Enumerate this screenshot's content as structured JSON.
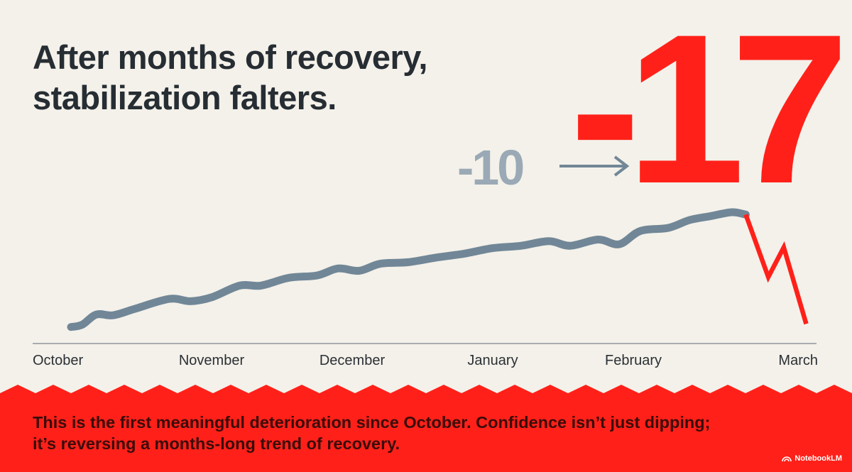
{
  "slide": {
    "headline": {
      "line1": "After months of recovery,",
      "line2": "stabilization falters."
    },
    "from_value": "-10",
    "to_value": "-17",
    "footer": {
      "line1": "This is the first meaningful deterioration since October. Confidence isn’t just dipping;",
      "line2": "it’s reversing a months-long trend of recovery."
    },
    "brand": "NotebookLM",
    "brand_icon": "notebooklm-logo-icon"
  },
  "colors": {
    "background": "#f4f1ea",
    "trend_line": "#718797",
    "drop_line": "#ff2119",
    "accent_red": "#ff2119",
    "muted_value": "#9aa9b5",
    "headline": "#262d33"
  },
  "chart_data": {
    "type": "line",
    "x_axis_labels": [
      "October",
      "November",
      "December",
      "January",
      "February",
      "March"
    ],
    "y_axis": "none",
    "grid": false,
    "series": [
      {
        "role": "recovery-trend",
        "color": "#718797",
        "points": [
          [
            0.0,
            0.03
          ],
          [
            0.08,
            0.06
          ],
          [
            0.18,
            0.19
          ],
          [
            0.3,
            0.18
          ],
          [
            0.45,
            0.26
          ],
          [
            0.7,
            0.39
          ],
          [
            0.85,
            0.36
          ],
          [
            1.0,
            0.41
          ],
          [
            1.2,
            0.56
          ],
          [
            1.35,
            0.56
          ],
          [
            1.55,
            0.66
          ],
          [
            1.75,
            0.69
          ],
          [
            1.9,
            0.78
          ],
          [
            2.05,
            0.75
          ],
          [
            2.2,
            0.84
          ],
          [
            2.4,
            0.86
          ],
          [
            2.6,
            0.92
          ],
          [
            2.8,
            0.97
          ],
          [
            3.0,
            1.04
          ],
          [
            3.2,
            1.07
          ],
          [
            3.4,
            1.13
          ],
          [
            3.55,
            1.07
          ],
          [
            3.75,
            1.15
          ],
          [
            3.9,
            1.09
          ],
          [
            4.05,
            1.26
          ],
          [
            4.25,
            1.3
          ],
          [
            4.4,
            1.4
          ],
          [
            4.55,
            1.45
          ],
          [
            4.7,
            1.5
          ],
          [
            4.8,
            1.47
          ]
        ]
      },
      {
        "role": "sharp-decline",
        "color": "#ff2119",
        "points": [
          [
            4.8,
            1.47
          ],
          [
            4.96,
            0.67
          ],
          [
            5.07,
            1.05
          ],
          [
            5.23,
            0.07
          ]
        ]
      }
    ],
    "annotations": [
      "-10",
      "-17"
    ]
  }
}
